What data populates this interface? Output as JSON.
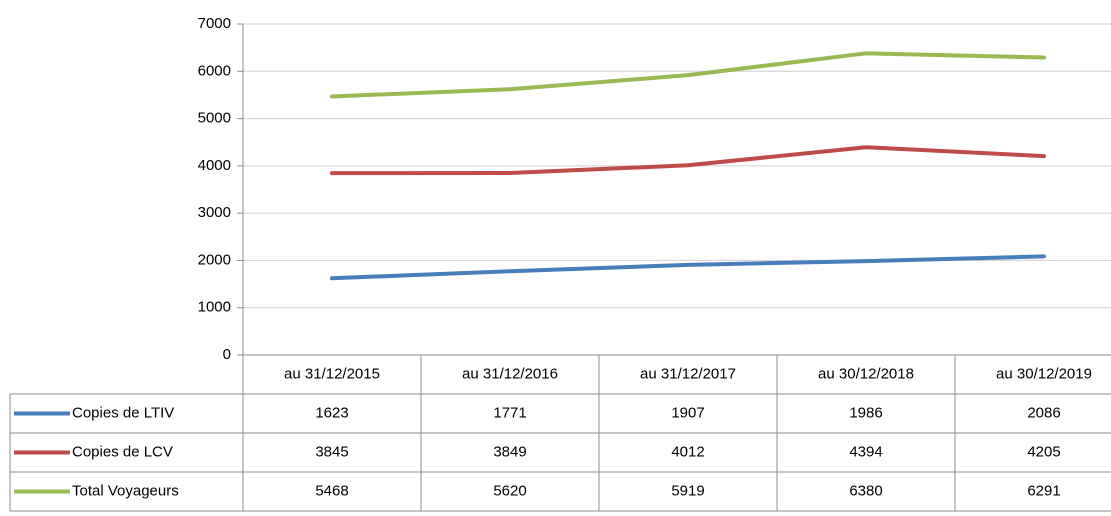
{
  "chart_data": {
    "type": "line",
    "categories": [
      "au 31/12/2015",
      "au 31/12/2016",
      "au 31/12/2017",
      "au 30/12/2018",
      "au 30/12/2019"
    ],
    "series": [
      {
        "name": "Copies de LTIV",
        "color": "#4a7ebb",
        "values": [
          1623,
          1771,
          1907,
          1986,
          2086
        ]
      },
      {
        "name": "Copies de LCV",
        "color": "#be4b48",
        "values": [
          3845,
          3849,
          4012,
          4394,
          4205
        ]
      },
      {
        "name": "Total Voyageurs",
        "color": "#98b954",
        "values": [
          5468,
          5620,
          5919,
          6380,
          6291
        ]
      }
    ],
    "ylim": [
      0,
      7000
    ],
    "yticks": [
      0,
      1000,
      2000,
      3000,
      4000,
      5000,
      6000,
      7000
    ],
    "grid": true
  }
}
